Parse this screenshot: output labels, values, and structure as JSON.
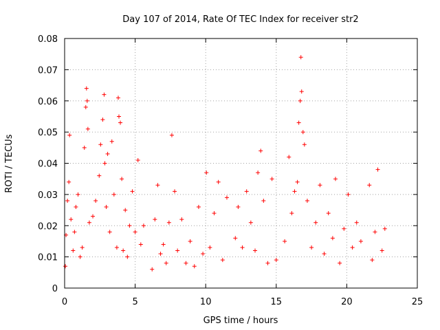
{
  "chart_data": {
    "type": "scatter",
    "title": "Day 107 of 2014, Rate Of TEC Index for receiver str2",
    "xlabel": "GPS time / hours",
    "ylabel": "ROTI / TECUs",
    "xlim": [
      0,
      25
    ],
    "ylim": [
      0,
      0.08
    ],
    "x_ticks": [
      0,
      5,
      10,
      15,
      20,
      25
    ],
    "x_tick_labels": [
      "0",
      "5",
      "10",
      "15",
      "20",
      "25"
    ],
    "y_ticks": [
      0,
      0.01,
      0.02,
      0.03,
      0.04,
      0.05,
      0.06,
      0.07,
      0.08
    ],
    "y_tick_labels": [
      "0",
      "0.01",
      "0.02",
      "0.03",
      "0.04",
      "0.05",
      "0.06",
      "0.07",
      "0.08"
    ],
    "grid": true,
    "marker": "plus",
    "color": "#ff0000",
    "series": [
      {
        "name": "ROTI",
        "x": [
          0.05,
          0.1,
          0.2,
          0.3,
          0.35,
          0.45,
          0.6,
          0.7,
          0.8,
          0.95,
          1.1,
          1.25,
          1.4,
          1.5,
          1.55,
          1.6,
          1.65,
          1.75,
          2.0,
          2.2,
          2.45,
          2.55,
          2.7,
          2.8,
          2.85,
          2.95,
          3.05,
          3.2,
          3.35,
          3.5,
          3.7,
          3.8,
          3.85,
          3.95,
          4.05,
          4.15,
          4.3,
          4.45,
          4.6,
          4.8,
          5.0,
          5.2,
          5.4,
          5.6,
          6.2,
          6.4,
          6.6,
          6.8,
          7.0,
          7.2,
          7.4,
          7.6,
          7.8,
          8.0,
          8.3,
          8.6,
          8.9,
          9.2,
          9.5,
          9.8,
          10.05,
          10.3,
          10.6,
          10.9,
          11.2,
          11.5,
          12.1,
          12.3,
          12.6,
          12.9,
          13.2,
          13.5,
          13.7,
          13.9,
          14.1,
          14.4,
          14.7,
          15.0,
          15.6,
          15.9,
          16.1,
          16.3,
          16.5,
          16.6,
          16.7,
          16.75,
          16.8,
          16.9,
          17.0,
          17.2,
          17.5,
          17.8,
          18.1,
          18.4,
          18.7,
          19.0,
          19.2,
          19.5,
          19.8,
          20.1,
          20.4,
          20.7,
          21.0,
          21.6,
          21.8,
          22.0,
          22.2,
          22.5,
          22.7
        ],
        "y": [
          0.007,
          0.017,
          0.028,
          0.034,
          0.049,
          0.022,
          0.012,
          0.018,
          0.026,
          0.03,
          0.01,
          0.013,
          0.045,
          0.058,
          0.064,
          0.06,
          0.051,
          0.021,
          0.023,
          0.028,
          0.036,
          0.046,
          0.054,
          0.062,
          0.04,
          0.026,
          0.043,
          0.018,
          0.047,
          0.03,
          0.013,
          0.061,
          0.055,
          0.053,
          0.035,
          0.012,
          0.025,
          0.01,
          0.02,
          0.031,
          0.018,
          0.041,
          0.014,
          0.02,
          0.006,
          0.022,
          0.033,
          0.011,
          0.014,
          0.008,
          0.021,
          0.049,
          0.031,
          0.012,
          0.022,
          0.008,
          0.015,
          0.007,
          0.026,
          0.011,
          0.037,
          0.013,
          0.024,
          0.034,
          0.009,
          0.029,
          0.016,
          0.026,
          0.013,
          0.031,
          0.021,
          0.012,
          0.037,
          0.044,
          0.028,
          0.008,
          0.035,
          0.009,
          0.015,
          0.042,
          0.024,
          0.031,
          0.034,
          0.053,
          0.06,
          0.074,
          0.063,
          0.05,
          0.046,
          0.028,
          0.013,
          0.021,
          0.033,
          0.011,
          0.024,
          0.016,
          0.035,
          0.008,
          0.019,
          0.03,
          0.013,
          0.021,
          0.015,
          0.033,
          0.009,
          0.018,
          0.038,
          0.012,
          0.019
        ]
      }
    ]
  }
}
